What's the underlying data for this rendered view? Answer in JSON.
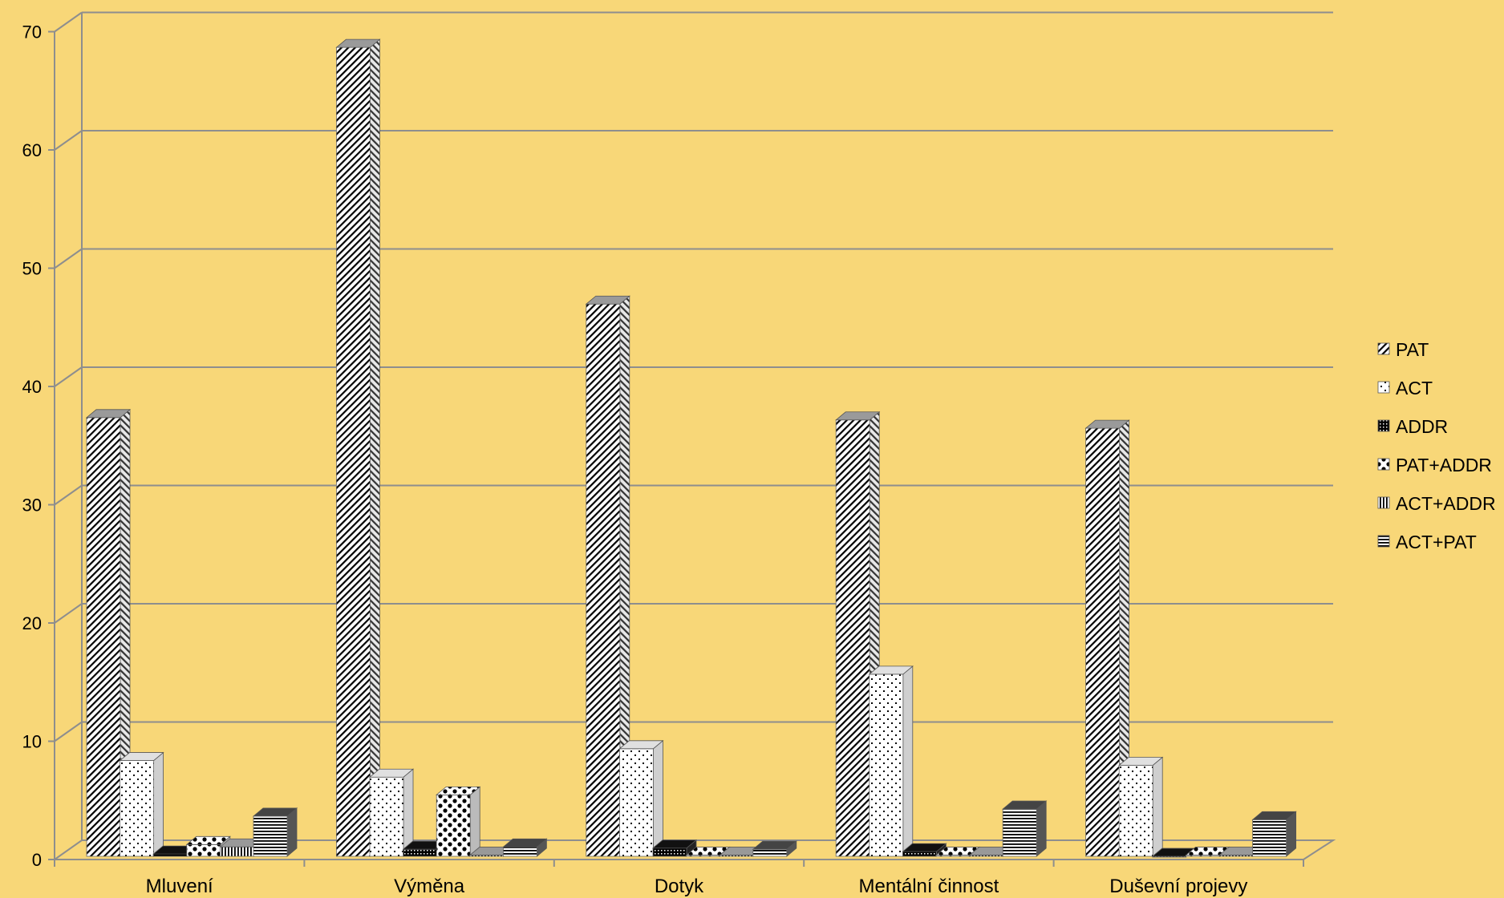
{
  "chart_data": {
    "type": "bar",
    "categories": [
      "Mluvení",
      "Výměna",
      "Dotyk",
      "Mentální činnost",
      "Duševní projevy"
    ],
    "series": [
      {
        "name": "PAT",
        "values": [
          37.3,
          68.6,
          46.9,
          37.1,
          36.4
        ]
      },
      {
        "name": "ACT",
        "values": [
          8.3,
          6.9,
          9.3,
          15.6,
          7.9
        ]
      },
      {
        "name": "ADDR",
        "values": [
          0.4,
          0.8,
          0.9,
          0.6,
          0.2
        ]
      },
      {
        "name": "PAT+ADDR",
        "values": [
          1.2,
          5.4,
          0.3,
          0.3,
          0.3
        ]
      },
      {
        "name": "ACT+ADDR",
        "values": [
          1.0,
          0.3,
          0.3,
          0.3,
          0.3
        ]
      },
      {
        "name": "ACT+PAT",
        "values": [
          3.6,
          1.0,
          0.8,
          4.2,
          3.3
        ]
      }
    ],
    "y_ticks": [
      "0",
      "10",
      "20",
      "30",
      "40",
      "50",
      "60",
      "70"
    ],
    "ylim": [
      0,
      70
    ],
    "grid": true,
    "legend_position": "right",
    "patterns": [
      "diagonal-hatch",
      "dots",
      "dark-check",
      "large-dots",
      "vertical-lines",
      "horizontal-lines"
    ],
    "colors": {
      "background": "#F8D778",
      "grid": "#8E8E8E",
      "bar_ink": "#000000",
      "bar_paper": "#FFFFFF"
    }
  }
}
